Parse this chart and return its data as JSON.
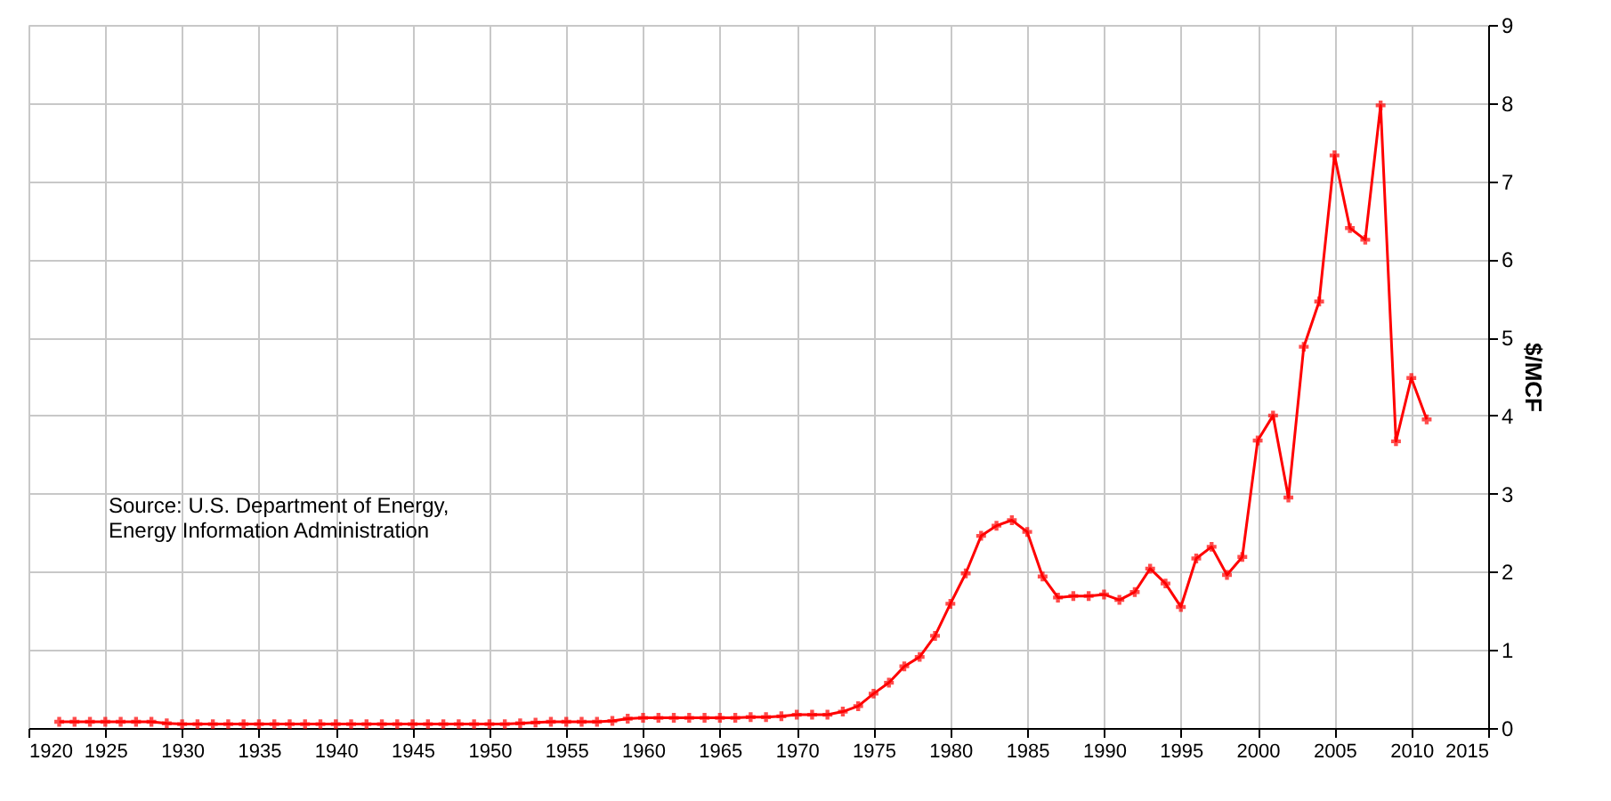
{
  "chart_data": {
    "type": "line",
    "ylabel": "$/MCF",
    "annotations": [
      "Source: U.S. Department of Energy,\nEnergy Information Administration"
    ],
    "x": [
      1922,
      1923,
      1924,
      1925,
      1926,
      1927,
      1928,
      1929,
      1930,
      1931,
      1932,
      1933,
      1934,
      1935,
      1936,
      1937,
      1938,
      1939,
      1940,
      1941,
      1942,
      1943,
      1944,
      1945,
      1946,
      1947,
      1948,
      1949,
      1950,
      1951,
      1952,
      1953,
      1954,
      1955,
      1956,
      1957,
      1958,
      1959,
      1960,
      1961,
      1962,
      1963,
      1964,
      1965,
      1966,
      1967,
      1968,
      1969,
      1970,
      1971,
      1972,
      1973,
      1974,
      1975,
      1976,
      1977,
      1978,
      1979,
      1980,
      1981,
      1982,
      1983,
      1984,
      1985,
      1986,
      1987,
      1988,
      1989,
      1990,
      1991,
      1992,
      1993,
      1994,
      1995,
      1996,
      1997,
      1998,
      1999,
      2000,
      2001,
      2002,
      2003,
      2004,
      2005,
      2006,
      2007,
      2008,
      2009,
      2010,
      2011
    ],
    "series": [
      {
        "color": "#ff0000",
        "values": [
          0.08,
          0.08,
          0.08,
          0.08,
          0.08,
          0.08,
          0.08,
          0.06,
          0.05,
          0.05,
          0.05,
          0.05,
          0.05,
          0.05,
          0.05,
          0.05,
          0.05,
          0.05,
          0.05,
          0.05,
          0.05,
          0.05,
          0.05,
          0.05,
          0.05,
          0.05,
          0.05,
          0.05,
          0.05,
          0.05,
          0.06,
          0.07,
          0.08,
          0.08,
          0.08,
          0.08,
          0.09,
          0.12,
          0.13,
          0.13,
          0.13,
          0.13,
          0.13,
          0.13,
          0.13,
          0.14,
          0.14,
          0.15,
          0.17,
          0.17,
          0.17,
          0.21,
          0.28,
          0.44,
          0.58,
          0.79,
          0.91,
          1.18,
          1.59,
          1.98,
          2.46,
          2.59,
          2.66,
          2.51,
          1.94,
          1.67,
          1.69,
          1.69,
          1.71,
          1.64,
          1.74,
          2.04,
          1.85,
          1.55,
          2.17,
          2.32,
          1.96,
          2.19,
          3.68,
          4.0,
          2.95,
          4.88,
          5.46,
          7.33,
          6.4,
          6.25,
          7.97,
          3.67,
          4.48,
          3.95
        ]
      }
    ],
    "xlim": [
      1920,
      2015
    ],
    "xticks": [
      1920,
      1925,
      1930,
      1935,
      1940,
      1945,
      1950,
      1955,
      1960,
      1965,
      1970,
      1975,
      1980,
      1985,
      1990,
      1995,
      2000,
      2005,
      2010,
      2015
    ],
    "ylim": [
      0,
      9
    ],
    "yticks": [
      0,
      1,
      2,
      3,
      4,
      5,
      6,
      7,
      8,
      9
    ],
    "grid": true,
    "marker": "cross",
    "line_style": "solid",
    "legend": false
  }
}
